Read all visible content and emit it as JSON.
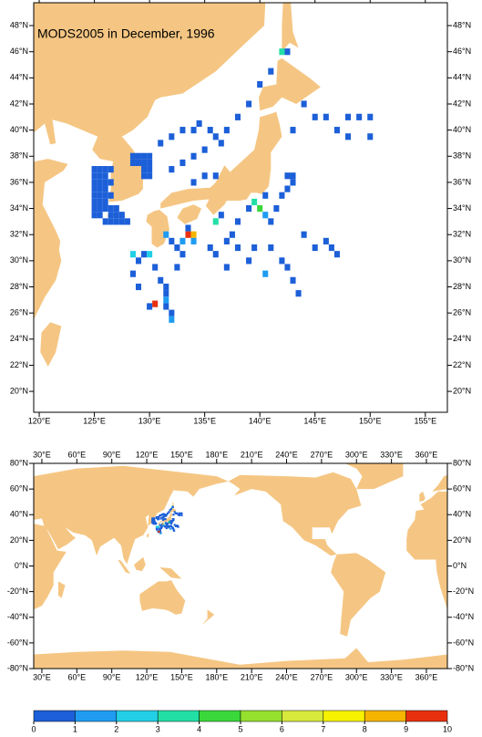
{
  "title": "MODS2005 in December, 1996",
  "top_map": {
    "xlim": [
      119.5,
      157
    ],
    "ylim": [
      18.4,
      49.75
    ],
    "xticks": [
      {
        "value": 120,
        "label": "120°E"
      },
      {
        "value": 125,
        "label": "125°E"
      },
      {
        "value": 130,
        "label": "130°E"
      },
      {
        "value": 135,
        "label": "135°E"
      },
      {
        "value": 140,
        "label": "140°E"
      },
      {
        "value": 145,
        "label": "145°E"
      },
      {
        "value": 150,
        "label": "150°E"
      },
      {
        "value": 155,
        "label": "155°E"
      }
    ],
    "yticks": [
      {
        "value": 20,
        "label": "20°N"
      },
      {
        "value": 22,
        "label": "22°N"
      },
      {
        "value": 24,
        "label": "24°N"
      },
      {
        "value": 26,
        "label": "26°N"
      },
      {
        "value": 28,
        "label": "28°N"
      },
      {
        "value": 30,
        "label": "30°N"
      },
      {
        "value": 32,
        "label": "32°N"
      },
      {
        "value": 34,
        "label": "34°N"
      },
      {
        "value": 36,
        "label": "36°N"
      },
      {
        "value": 38,
        "label": "38°N"
      },
      {
        "value": 40,
        "label": "40°N"
      },
      {
        "value": 42,
        "label": "42°N"
      },
      {
        "value": 44,
        "label": "44°N"
      },
      {
        "value": 46,
        "label": "46°N"
      },
      {
        "value": 48,
        "label": "48°N"
      }
    ]
  },
  "world_map": {
    "xlim": [
      23,
      378
    ],
    "ylim": [
      -80,
      80
    ],
    "xticks": [
      {
        "value": 30,
        "label": "30°E"
      },
      {
        "value": 60,
        "label": "60°E"
      },
      {
        "value": 90,
        "label": "90°E"
      },
      {
        "value": 120,
        "label": "120°E"
      },
      {
        "value": 150,
        "label": "150°E"
      },
      {
        "value": 180,
        "label": "180°E"
      },
      {
        "value": 210,
        "label": "210°E"
      },
      {
        "value": 240,
        "label": "240°E"
      },
      {
        "value": 270,
        "label": "270°E"
      },
      {
        "value": 300,
        "label": "300°E"
      },
      {
        "value": 330,
        "label": "330°E"
      },
      {
        "value": 360,
        "label": "360°E"
      }
    ],
    "yticks": [
      {
        "value": 80,
        "label": "80°N"
      },
      {
        "value": 60,
        "label": "60°N"
      },
      {
        "value": 40,
        "label": "40°N"
      },
      {
        "value": 20,
        "label": "20°N"
      },
      {
        "value": 0,
        "label": "0°N"
      },
      {
        "value": -20,
        "label": "-20°N"
      },
      {
        "value": -40,
        "label": "-40°N"
      },
      {
        "value": -60,
        "label": "-60°N"
      },
      {
        "value": -80,
        "label": "-80°N"
      }
    ]
  },
  "colorbar": {
    "ticks": [
      0,
      1,
      2,
      3,
      4,
      5,
      6,
      7,
      8,
      9,
      10
    ],
    "colors": [
      "#1c5fd8",
      "#1f9cf2",
      "#22cfe6",
      "#22dfa6",
      "#3ad83a",
      "#95e02c",
      "#d7ea3c",
      "#f6f200",
      "#f5b400",
      "#e8300e"
    ]
  },
  "observations": {
    "cell_size": 0.5,
    "cells": [
      [
        125,
        37,
        0.5
      ],
      [
        125.5,
        37,
        0.5
      ],
      [
        126,
        37,
        0.5
      ],
      [
        126.5,
        37,
        0.5
      ],
      [
        125,
        36.5,
        0.5
      ],
      [
        125.5,
        36.5,
        0.5
      ],
      [
        126,
        36.5,
        0.5
      ],
      [
        125,
        36,
        0.5
      ],
      [
        125.5,
        36,
        0.5
      ],
      [
        126,
        36,
        0.5
      ],
      [
        126.5,
        36,
        0.5
      ],
      [
        125,
        35.5,
        0.5
      ],
      [
        125.5,
        35.5,
        0.5
      ],
      [
        126,
        35.5,
        0.5
      ],
      [
        125,
        35,
        0.5
      ],
      [
        125.5,
        35,
        0.5
      ],
      [
        126,
        35,
        0.5
      ],
      [
        126.5,
        35,
        0.5
      ],
      [
        125,
        34.5,
        0.5
      ],
      [
        125.5,
        34.5,
        0.5
      ],
      [
        126,
        34.5,
        0.5
      ],
      [
        125,
        34,
        0.5
      ],
      [
        125.5,
        34,
        0.5
      ],
      [
        126,
        34,
        0.5
      ],
      [
        126.5,
        34,
        0.5
      ],
      [
        127,
        34,
        0.5
      ],
      [
        125,
        33.5,
        0.5
      ],
      [
        125.5,
        33.5,
        0.5
      ],
      [
        126.5,
        33.5,
        0.5
      ],
      [
        127,
        33.5,
        0.5
      ],
      [
        127.5,
        33.5,
        0.5
      ],
      [
        126,
        33,
        0.5
      ],
      [
        126.5,
        33,
        0.5
      ],
      [
        127,
        33,
        0.5
      ],
      [
        127.5,
        33,
        0.5
      ],
      [
        128,
        33,
        0.5
      ],
      [
        128.5,
        38,
        0.5
      ],
      [
        129,
        38,
        0.5
      ],
      [
        129.5,
        38,
        0.5
      ],
      [
        130,
        38,
        0.5
      ],
      [
        128.5,
        37.5,
        0.5
      ],
      [
        129,
        37.5,
        0.5
      ],
      [
        129.5,
        37.5,
        0.5
      ],
      [
        130,
        37.5,
        0.5
      ],
      [
        129.5,
        37,
        0.5
      ],
      [
        130,
        37,
        0.5
      ],
      [
        129.5,
        36.5,
        0.5
      ],
      [
        130,
        36.5,
        0.5
      ],
      [
        131,
        39,
        0.5
      ],
      [
        132,
        39.5,
        0.5
      ],
      [
        133,
        40,
        0.5
      ],
      [
        134,
        40,
        0.5
      ],
      [
        134.5,
        40.5,
        0.5
      ],
      [
        135.5,
        40,
        0.5
      ],
      [
        136,
        39.5,
        0.5
      ],
      [
        136.5,
        39,
        0.5
      ],
      [
        132,
        37,
        0.5
      ],
      [
        133,
        37.5,
        0.5
      ],
      [
        134,
        38,
        0.5
      ],
      [
        135,
        38.5,
        0.5
      ],
      [
        137,
        40,
        0.5
      ],
      [
        138,
        41,
        0.5
      ],
      [
        139,
        42,
        0.5
      ],
      [
        135,
        36.5,
        0.5
      ],
      [
        134,
        36,
        0.5
      ],
      [
        136,
        36.5,
        0.5
      ],
      [
        131.5,
        32,
        1.5
      ],
      [
        132,
        31.5,
        0.5
      ],
      [
        132.5,
        31,
        0.5
      ],
      [
        133,
        31.5,
        1.5
      ],
      [
        133.5,
        32,
        9.5
      ],
      [
        133.5,
        32.5,
        0.5
      ],
      [
        134,
        32,
        8.5
      ],
      [
        134,
        31.5,
        1.5
      ],
      [
        133,
        30.5,
        0.5
      ],
      [
        132.5,
        29.5,
        0.5
      ],
      [
        131,
        28.5,
        0.5
      ],
      [
        131.5,
        27.5,
        0.5
      ],
      [
        131.5,
        27,
        1.5
      ],
      [
        131.5,
        26.5,
        0.5
      ],
      [
        132,
        26,
        0.5
      ],
      [
        132,
        25.5,
        1.5
      ],
      [
        131.5,
        28,
        0.5
      ],
      [
        130,
        26.5,
        0.5
      ],
      [
        129,
        28,
        0.5
      ],
      [
        128.5,
        29,
        0.5
      ],
      [
        129,
        30,
        0.5
      ],
      [
        129.5,
        30.5,
        0.5
      ],
      [
        130.5,
        29.5,
        0.5
      ],
      [
        130.5,
        26.7,
        9
      ],
      [
        128.5,
        30.5,
        2.5
      ],
      [
        130,
        30.5,
        2.5
      ],
      [
        136,
        33,
        3.5
      ],
      [
        136.5,
        33.5,
        0.5
      ],
      [
        135.5,
        31,
        0.5
      ],
      [
        136,
        30.5,
        0.5
      ],
      [
        137,
        31.5,
        0.5
      ],
      [
        138,
        33,
        0.5
      ],
      [
        139,
        34,
        0.5
      ],
      [
        139.5,
        34.5,
        3
      ],
      [
        140,
        34,
        4
      ],
      [
        140.5,
        33.5,
        1.5
      ],
      [
        141,
        33,
        0.5
      ],
      [
        141.5,
        34,
        0.5
      ],
      [
        142,
        35,
        0.5
      ],
      [
        142.5,
        35.5,
        0.5
      ],
      [
        143,
        36,
        0.5
      ],
      [
        143,
        36.5,
        0.5
      ],
      [
        142.5,
        36.5,
        0.5
      ],
      [
        140.5,
        35,
        0.5
      ],
      [
        141,
        31,
        0.5
      ],
      [
        142,
        30,
        0.5
      ],
      [
        142.5,
        29.5,
        0.5
      ],
      [
        143,
        28.5,
        0.5
      ],
      [
        143.5,
        27.5,
        0.5
      ],
      [
        144,
        32,
        0.5
      ],
      [
        145,
        31,
        0.5
      ],
      [
        146,
        31.5,
        0.5
      ],
      [
        146.5,
        31,
        0.5
      ],
      [
        147,
        30.5,
        0.5
      ],
      [
        140.5,
        29,
        1.5
      ],
      [
        139,
        30,
        0.5
      ],
      [
        138,
        31,
        0.5
      ],
      [
        137.5,
        32,
        0.5
      ],
      [
        139.5,
        31,
        0.5
      ],
      [
        137,
        29.5,
        0.5
      ],
      [
        142,
        46,
        3.5
      ],
      [
        142.5,
        46,
        0.5
      ],
      [
        144,
        42,
        0.5
      ],
      [
        145,
        41,
        0.5
      ],
      [
        146,
        41,
        0.5
      ],
      [
        148,
        41,
        0.5
      ],
      [
        149,
        41,
        0.5
      ],
      [
        150,
        41,
        0.5
      ],
      [
        143,
        40,
        0.5
      ],
      [
        147,
        40,
        0.5
      ],
      [
        148,
        39.5,
        0.5
      ],
      [
        150,
        39.5,
        0.5
      ],
      [
        141,
        44.5,
        0.5
      ],
      [
        140,
        43.5,
        0.5
      ]
    ]
  }
}
